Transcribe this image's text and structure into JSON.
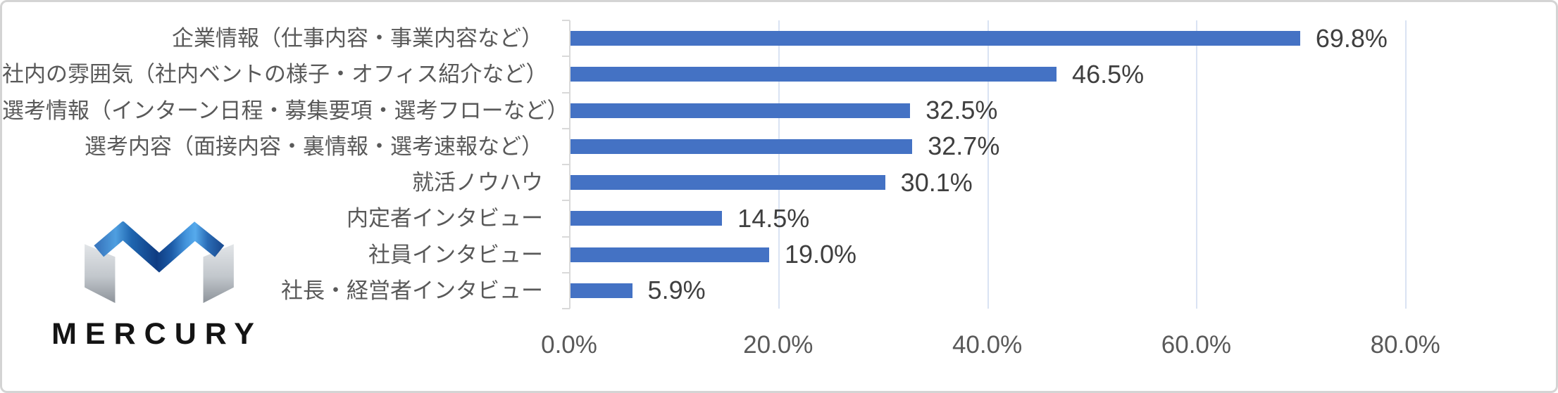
{
  "frame": {
    "background_color": "#ffffff",
    "border_color": "#d4d4d4"
  },
  "logo": {
    "wordmark": "MERCURY",
    "mark_blue": "#1c5aa6",
    "mark_gray": "#a7adb3"
  },
  "chart_data": {
    "type": "bar",
    "orientation": "horizontal",
    "title": "",
    "categories": [
      "企業情報（仕事内容・事業内容など）",
      "社内の雰囲気（社内ベントの様子・オフィス紹介など）",
      "選考情報（インターン日程・募集要項・選考フローなど）",
      "選考内容（面接内容・裏情報・選考速報など）",
      "就活ノウハウ",
      "内定者インタビュー",
      "社員インタビュー",
      "社長・経営者インタビュー"
    ],
    "values": [
      69.8,
      46.5,
      32.5,
      32.7,
      30.1,
      14.5,
      19.0,
      5.9
    ],
    "value_labels": [
      "69.8%",
      "46.5%",
      "32.5%",
      "32.7%",
      "30.1%",
      "14.5%",
      "19.0%",
      "5.9%"
    ],
    "x_axis": {
      "tick_labels": [
        "0.0%",
        "20.0%",
        "40.0%",
        "60.0%",
        "80.0%"
      ],
      "tick_values": [
        0,
        20,
        40,
        60,
        80
      ],
      "min": 0,
      "max": 80
    },
    "grid": "vertical",
    "legend": "none",
    "bar_color": "#4472C4",
    "gridline_color": "#dae3f3",
    "axis_line_color": "#d9d9d9",
    "category_label_color": "#595959",
    "value_label_color": "#3f3f3f"
  }
}
